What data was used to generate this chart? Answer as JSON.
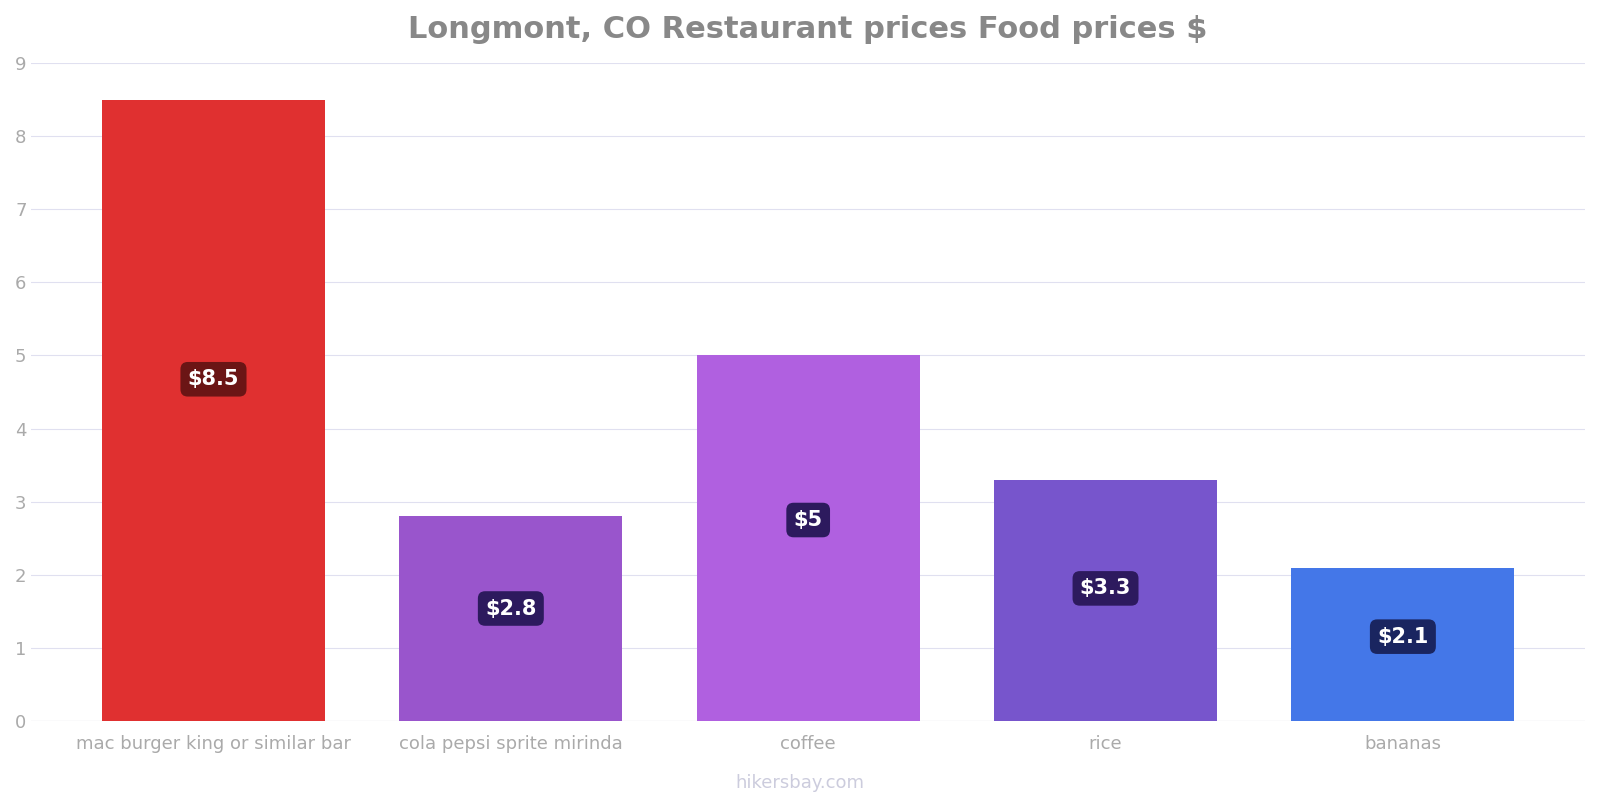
{
  "title": "Longmont, CO Restaurant prices Food prices $",
  "categories": [
    "mac burger king or similar bar",
    "cola pepsi sprite mirinda",
    "coffee",
    "rice",
    "bananas"
  ],
  "values": [
    8.5,
    2.8,
    5.0,
    3.3,
    2.1
  ],
  "bar_colors": [
    "#e03030",
    "#9955cc",
    "#b060e0",
    "#7755cc",
    "#4477e8"
  ],
  "label_texts": [
    "$8.5",
    "$2.8",
    "$5",
    "$3.3",
    "$2.1"
  ],
  "label_box_colors": [
    "#6b1515",
    "#2d1a5e",
    "#2d1a5e",
    "#2d1a5e",
    "#1a2560"
  ],
  "label_text_color": "#ffffff",
  "ylim": [
    0,
    9
  ],
  "yticks": [
    0,
    1,
    2,
    3,
    4,
    5,
    6,
    7,
    8,
    9
  ],
  "background_color": "#ffffff",
  "title_fontsize": 22,
  "tick_fontsize": 13,
  "watermark": "hikersbay.com",
  "watermark_color": "#ccccdd",
  "grid_color": "#e0e0f0"
}
